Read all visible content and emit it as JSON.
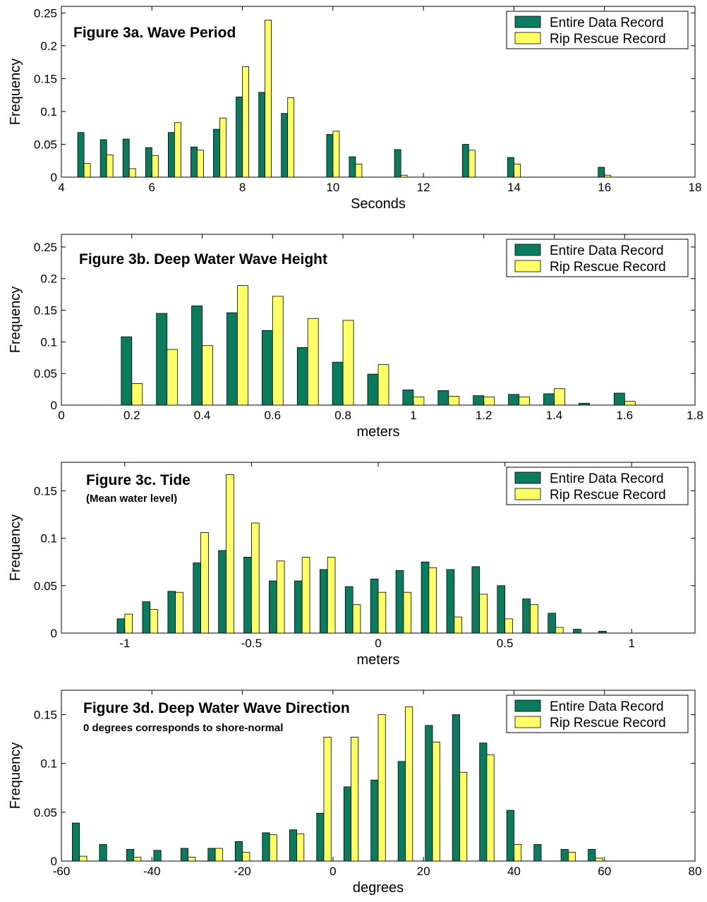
{
  "colors": {
    "entire": "#0b7b60",
    "rip": "#ffff66",
    "edge": "#000000"
  },
  "chart_data": [
    {
      "type": "bar",
      "title": "Figure 3a. Wave Period",
      "subtitle": "",
      "xlabel": "Seconds",
      "ylabel": "Frequency",
      "xlim": [
        4,
        18
      ],
      "ylim": [
        0,
        0.26
      ],
      "xticks": [
        4,
        6,
        8,
        10,
        12,
        14,
        16,
        18
      ],
      "yticks": [
        0,
        0.05,
        0.1,
        0.15,
        0.2,
        0.25
      ],
      "xtick_labels": [
        "4",
        "6",
        "8",
        "10",
        "12",
        "14",
        "16",
        "18"
      ],
      "ytick_labels": [
        "0",
        "0.05",
        "0.1",
        "0.15",
        "0.2",
        "0.25"
      ],
      "bar_width": 0.14,
      "legend": "top-right",
      "x": [
        4.5,
        5.0,
        5.5,
        6.0,
        6.5,
        7.0,
        7.5,
        8.0,
        8.5,
        9.0,
        10.0,
        10.5,
        11.5,
        13.0,
        14.0,
        16.0
      ],
      "series": [
        {
          "name": "Entire Data Record",
          "values": [
            0.068,
            0.057,
            0.058,
            0.045,
            0.068,
            0.046,
            0.073,
            0.122,
            0.129,
            0.097,
            0.065,
            0.031,
            0.042,
            0.05,
            0.03,
            0.015
          ]
        },
        {
          "name": "Rip Rescue Record",
          "values": [
            0.021,
            0.034,
            0.013,
            0.033,
            0.083,
            0.041,
            0.09,
            0.168,
            0.239,
            0.121,
            0.07,
            0.02,
            0.003,
            0.041,
            0.02,
            0.003
          ]
        }
      ]
    },
    {
      "type": "bar",
      "title": "Figure 3b. Deep Water Wave Height",
      "subtitle": "",
      "xlabel": "meters",
      "ylabel": "Frequency",
      "xlim": [
        0,
        1.8
      ],
      "ylim": [
        0,
        0.27
      ],
      "xticks": [
        0,
        0.2,
        0.4,
        0.6,
        0.8,
        1,
        1.2,
        1.4,
        1.6,
        1.8
      ],
      "yticks": [
        0,
        0.05,
        0.1,
        0.15,
        0.2,
        0.25
      ],
      "xtick_labels": [
        "0",
        "0.2",
        "0.4",
        "0.6",
        "0.8",
        "1",
        "1.2",
        "1.4",
        "1.6",
        "1.8"
      ],
      "ytick_labels": [
        "0",
        "0.05",
        "0.1",
        "0.15",
        "0.2",
        "0.25"
      ],
      "bar_width": 0.03,
      "legend": "top-right",
      "x": [
        0.2,
        0.3,
        0.4,
        0.5,
        0.6,
        0.7,
        0.8,
        0.9,
        1.0,
        1.1,
        1.2,
        1.3,
        1.4,
        1.5,
        1.6
      ],
      "series": [
        {
          "name": "Entire Data Record",
          "values": [
            0.108,
            0.145,
            0.157,
            0.146,
            0.118,
            0.091,
            0.068,
            0.049,
            0.024,
            0.023,
            0.015,
            0.017,
            0.018,
            0.003,
            0.019
          ]
        },
        {
          "name": "Rip Rescue Record",
          "values": [
            0.034,
            0.088,
            0.094,
            0.189,
            0.172,
            0.137,
            0.134,
            0.064,
            0.013,
            0.014,
            0.013,
            0.013,
            0.026,
            0.0,
            0.006
          ]
        }
      ]
    },
    {
      "type": "bar",
      "title": "Figure 3c. Tide",
      "subtitle": "(Mean water level)",
      "xlabel": "meters",
      "ylabel": "Frequency",
      "xlim": [
        -1.25,
        1.25
      ],
      "ylim": [
        0,
        0.18
      ],
      "xticks": [
        -1,
        -0.5,
        0,
        0.5,
        1
      ],
      "yticks": [
        0,
        0.05,
        0.1,
        0.15
      ],
      "xtick_labels": [
        "-1",
        "-0.5",
        "0",
        "0.5",
        "1"
      ],
      "ytick_labels": [
        "0",
        "0.05",
        "0.1",
        "0.15"
      ],
      "bar_width": 0.03,
      "legend": "top-right",
      "x": [
        -1.0,
        -0.9,
        -0.8,
        -0.7,
        -0.6,
        -0.5,
        -0.4,
        -0.3,
        -0.2,
        -0.1,
        0.0,
        0.1,
        0.2,
        0.3,
        0.4,
        0.5,
        0.6,
        0.7,
        0.8,
        0.9
      ],
      "series": [
        {
          "name": "Entire Data Record",
          "values": [
            0.015,
            0.033,
            0.044,
            0.074,
            0.087,
            0.08,
            0.055,
            0.055,
            0.067,
            0.049,
            0.057,
            0.066,
            0.075,
            0.067,
            0.07,
            0.05,
            0.036,
            0.021,
            0.004,
            0.002
          ]
        },
        {
          "name": "Rip Rescue Record",
          "values": [
            0.02,
            0.025,
            0.043,
            0.106,
            0.167,
            0.116,
            0.076,
            0.08,
            0.08,
            0.03,
            0.043,
            0.043,
            0.069,
            0.017,
            0.041,
            0.015,
            0.03,
            0.006,
            0.0,
            0.0
          ]
        }
      ]
    },
    {
      "type": "bar",
      "title": "Figure 3d. Deep Water Wave Direction",
      "subtitle": "0 degrees corresponds to shore-normal",
      "xlabel": "degrees",
      "ylabel": "Frequency",
      "xlim": [
        -60,
        80
      ],
      "ylim": [
        0,
        0.175
      ],
      "xticks": [
        -60,
        -40,
        -20,
        0,
        20,
        40,
        60,
        80
      ],
      "yticks": [
        0,
        0.05,
        0.1,
        0.15
      ],
      "xtick_labels": [
        "-60",
        "-40",
        "-20",
        "0",
        "20",
        "40",
        "60",
        "80"
      ],
      "ytick_labels": [
        "0",
        "0.05",
        "0.1",
        "0.15"
      ],
      "bar_width": 1.6,
      "legend": "top-right",
      "x": [
        -56,
        -50,
        -44,
        -38,
        -32,
        -26,
        -20,
        -14,
        -8,
        -2,
        4,
        10,
        16,
        22,
        28,
        34,
        40,
        46,
        52,
        58
      ],
      "series": [
        {
          "name": "Entire Data Record",
          "values": [
            0.039,
            0.017,
            0.012,
            0.011,
            0.013,
            0.013,
            0.02,
            0.029,
            0.032,
            0.049,
            0.076,
            0.083,
            0.102,
            0.139,
            0.15,
            0.121,
            0.052,
            0.017,
            0.012,
            0.012
          ]
        },
        {
          "name": "Rip Rescue Record",
          "values": [
            0.005,
            0.0,
            0.004,
            0.0,
            0.004,
            0.013,
            0.009,
            0.027,
            0.028,
            0.127,
            0.127,
            0.15,
            0.158,
            0.122,
            0.091,
            0.109,
            0.017,
            0.0,
            0.009,
            0.003
          ]
        }
      ]
    }
  ]
}
